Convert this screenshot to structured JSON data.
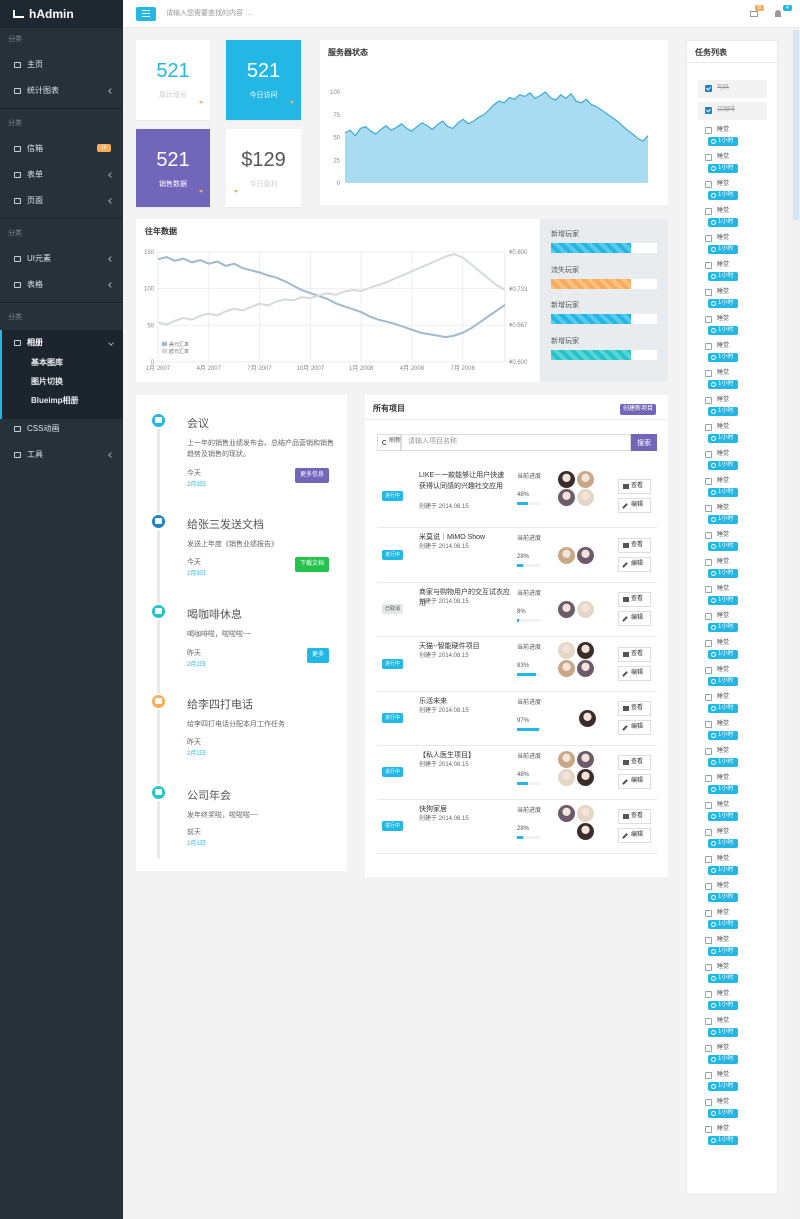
{
  "sidebar": {
    "logo": "hAdmin",
    "sections": [
      {
        "label": "分类",
        "items": [
          {
            "label": "主页"
          },
          {
            "label": "统计图表",
            "expandable": true
          }
        ]
      },
      {
        "label": "分类",
        "items": [
          {
            "label": "信箱",
            "badge": "16"
          },
          {
            "label": "表单",
            "expandable": true
          },
          {
            "label": "页面",
            "expandable": true
          }
        ]
      },
      {
        "label": "分类",
        "items": [
          {
            "label": "UI元素",
            "expandable": true
          },
          {
            "label": "表格",
            "expandable": true
          }
        ]
      },
      {
        "label": "分类",
        "items": [
          {
            "label": "相册",
            "expandable": true,
            "active": true,
            "children": [
              "基本图库",
              "图片切换",
              "Blueimp相册"
            ]
          },
          {
            "label": "CSS动画"
          },
          {
            "label": "工具",
            "expandable": true
          }
        ]
      }
    ]
  },
  "topbar": {
    "search_placeholder": "请输入您需要查找的内容 …",
    "mail_badge": "8",
    "bell_badge": "4"
  },
  "stats": [
    {
      "value": "521",
      "label": "周比增长"
    },
    {
      "value": "521",
      "label": "今日访问"
    },
    {
      "value": "521",
      "label": "销售数据"
    },
    {
      "value": "$129",
      "label": "今日盈利"
    }
  ],
  "chart_data": [
    {
      "type": "area",
      "title": "服务器状态",
      "color": "#3da9d9",
      "fill": "#a9dcf0",
      "grid": false,
      "values": [
        55,
        58,
        52,
        60,
        62,
        57,
        54,
        59,
        63,
        58,
        61,
        65,
        60,
        57,
        62,
        66,
        63,
        59,
        64,
        68,
        62,
        60,
        66,
        70,
        65,
        68,
        72,
        75,
        80,
        86,
        90,
        88,
        94,
        92,
        97,
        95,
        99,
        93,
        96,
        100,
        94,
        91,
        97,
        93,
        98,
        90,
        88,
        92,
        86,
        84,
        80,
        76,
        72,
        68,
        63,
        58,
        54,
        49,
        46,
        52
      ],
      "ylim": [
        0,
        100
      ],
      "yticks": [
        0,
        25,
        50,
        75,
        100
      ]
    },
    {
      "type": "line",
      "title": "往年数据",
      "grid": true,
      "legend": "bottom-left",
      "x": [
        0,
        0.5,
        1,
        1.5,
        2,
        2.5,
        3,
        3.5,
        4,
        4.5,
        5,
        5.5,
        6,
        6.5,
        7,
        7.5,
        8,
        8.5,
        9,
        9.5,
        10,
        10.5,
        11,
        11.5,
        12,
        12.5,
        13,
        13.5,
        14,
        14.5,
        15,
        15.5,
        16,
        16.5,
        17,
        17.5,
        18,
        18.5,
        19,
        19.5,
        20,
        20.5
      ],
      "xlim": [
        0,
        20.5
      ],
      "xticks": [
        {
          "value": 0,
          "label": "1月 2007"
        },
        {
          "value": 3,
          "label": "4月 2007"
        },
        {
          "value": 6,
          "label": "7月 2007"
        },
        {
          "value": 9,
          "label": "10月 2007"
        },
        {
          "value": 12,
          "label": "1月 2008"
        },
        {
          "value": 15,
          "label": "4月 2008"
        },
        {
          "value": 18,
          "label": "7月 2008"
        }
      ],
      "ylim": [
        0,
        150
      ],
      "yticks": [
        0,
        50,
        100,
        150
      ],
      "y2lim": [
        0.6,
        0.8
      ],
      "y2ticks": [
        {
          "value": 0.6,
          "label": "¥0.600"
        },
        {
          "value": 0.667,
          "label": "¥0.667"
        },
        {
          "value": 0.733,
          "label": "¥0.733"
        },
        {
          "value": 0.8,
          "label": "¥0.800"
        }
      ],
      "series": [
        {
          "name": "美元汇率",
          "color": "#9fb9cf",
          "values": [
            140,
            143,
            138,
            141,
            136,
            139,
            134,
            137,
            131,
            134,
            128,
            125,
            122,
            118,
            115,
            110,
            104,
            98,
            94,
            90,
            86,
            80,
            76,
            72,
            68,
            62,
            58,
            55,
            52,
            48,
            44,
            40,
            38,
            36,
            34,
            36,
            40,
            46,
            54,
            62,
            70,
            78
          ]
        },
        {
          "name": "欧元汇率",
          "color": "#d4d9de",
          "axis": "y2",
          "values": [
            0.672,
            0.668,
            0.675,
            0.68,
            0.677,
            0.684,
            0.688,
            0.685,
            0.692,
            0.697,
            0.694,
            0.7,
            0.706,
            0.703,
            0.71,
            0.714,
            0.712,
            0.718,
            0.716,
            0.721,
            0.725,
            0.722,
            0.728,
            0.731,
            0.729,
            0.735,
            0.74,
            0.745,
            0.752,
            0.758,
            0.765,
            0.772,
            0.778,
            0.785,
            0.792,
            0.796,
            0.79,
            0.778,
            0.765,
            0.752,
            0.74,
            0.731
          ]
        }
      ]
    }
  ],
  "players": [
    {
      "label": "新增玩家",
      "value": 75
    },
    {
      "label": "流失玩家",
      "value": 75
    },
    {
      "label": "新增玩家",
      "value": 75
    },
    {
      "label": "新增玩家",
      "value": 75
    }
  ],
  "timeline": [
    {
      "title": "会议",
      "text": "上一年的销售业绩发布会。总结产品营销和销售趋势及销售的现状。",
      "time": "今天",
      "date": "2月3日",
      "button": "更多信息"
    },
    {
      "title": "给张三发送文档",
      "text": "发送上年度《销售业绩报告》",
      "time": "今天",
      "date": "2月3日",
      "button": "下载文档"
    },
    {
      "title": "喝咖啡休息",
      "text": "喝咖啡啦，啦啦啦~~",
      "time": "昨天",
      "date": "2月2日",
      "button": "更多"
    },
    {
      "title": "给李四打电话",
      "text": "给李四打电话分配本月工作任务",
      "time": "昨天",
      "date": "2月2日"
    },
    {
      "title": "公司年会",
      "text": "发年终奖啦，啦啦啦~~",
      "time": "前天",
      "date": "2月1日"
    }
  ],
  "projects": {
    "title": "所有项目",
    "create": "创建新项目",
    "refresh": "刷新",
    "search_placeholder": "请输入项目名称",
    "search": "搜索",
    "progress_title": "当前进度",
    "view": "查看",
    "edit": "编辑",
    "rows": [
      {
        "status": "进行中",
        "name": "LIKE－一款能够让用户快速获得认同感的兴趣社交应用",
        "created": "创建于 2014.08.15",
        "progress": 48,
        "progress_label": "48%"
      },
      {
        "status": "进行中",
        "name": "米莫说｜MiMO Show",
        "created": "创建于 2014.08.15",
        "progress": 28,
        "progress_label": "28%"
      },
      {
        "status": "已取消",
        "name": "商家与购物用户的交互试衣应用",
        "created": "创建于 2014.08.15",
        "progress": 8,
        "progress_label": "8%"
      },
      {
        "status": "进行中",
        "name": "天猫--智能硬件项目",
        "created": "创建于 2014.08.15",
        "progress": 83,
        "progress_label": "83%"
      },
      {
        "status": "进行中",
        "name": "乐活未来",
        "created": "创建于 2014.08.15",
        "progress": 97,
        "progress_label": "97%"
      },
      {
        "status": "进行中",
        "name": "【私人医生项目】",
        "created": "创建于 2014.08.15",
        "progress": 48,
        "progress_label": "48%"
      },
      {
        "status": "进行中",
        "name": "快狗家居",
        "created": "创建于 2014.08.15",
        "progress": 28,
        "progress_label": "28%"
      }
    ]
  },
  "tasks": {
    "title": "任务列表",
    "items": [
      {
        "text": "写码",
        "done": true
      },
      {
        "text": "买咖啡",
        "done": true
      },
      {
        "text": "睡觉",
        "time": "1小时"
      },
      {
        "text": "睡觉",
        "time": "1小时"
      },
      {
        "text": "睡觉",
        "time": "1小时"
      },
      {
        "text": "睡觉",
        "time": "1小时"
      },
      {
        "text": "睡觉",
        "time": "1小时"
      },
      {
        "text": "睡觉",
        "time": "1小时"
      },
      {
        "text": "睡觉",
        "time": "1小时"
      },
      {
        "text": "睡觉",
        "time": "1小时"
      },
      {
        "text": "睡觉",
        "time": "1小时"
      },
      {
        "text": "睡觉",
        "time": "1小时"
      },
      {
        "text": "睡觉",
        "time": "1小时"
      },
      {
        "text": "睡觉",
        "time": "1小时"
      },
      {
        "text": "睡觉",
        "time": "1小时"
      },
      {
        "text": "睡觉",
        "time": "1小时"
      },
      {
        "text": "睡觉",
        "time": "1小时"
      },
      {
        "text": "睡觉",
        "time": "1小时"
      },
      {
        "text": "睡觉",
        "time": "1小时"
      },
      {
        "text": "睡觉",
        "time": "1小时"
      },
      {
        "text": "睡觉",
        "time": "1小时"
      },
      {
        "text": "睡觉",
        "time": "1小时"
      },
      {
        "text": "睡觉",
        "time": "1小时"
      },
      {
        "text": "睡觉",
        "time": "1小时"
      },
      {
        "text": "睡觉",
        "time": "1小时"
      },
      {
        "text": "睡觉",
        "time": "1小时"
      },
      {
        "text": "睡觉",
        "time": "1小时"
      },
      {
        "text": "睡觉",
        "time": "1小时"
      },
      {
        "text": "睡觉",
        "time": "1小时"
      },
      {
        "text": "睡觉",
        "time": "1小时"
      },
      {
        "text": "睡觉",
        "time": "1小时"
      },
      {
        "text": "睡觉",
        "time": "1小时"
      },
      {
        "text": "睡觉",
        "time": "1小时"
      },
      {
        "text": "睡觉",
        "time": "1小时"
      },
      {
        "text": "睡觉",
        "time": "1小时"
      },
      {
        "text": "睡觉",
        "time": "1小时"
      },
      {
        "text": "睡觉",
        "time": "1小时"
      },
      {
        "text": "睡觉",
        "time": "1小时"
      },
      {
        "text": "睡觉",
        "time": "1小时"
      },
      {
        "text": "睡觉",
        "time": "1小时"
      }
    ]
  }
}
